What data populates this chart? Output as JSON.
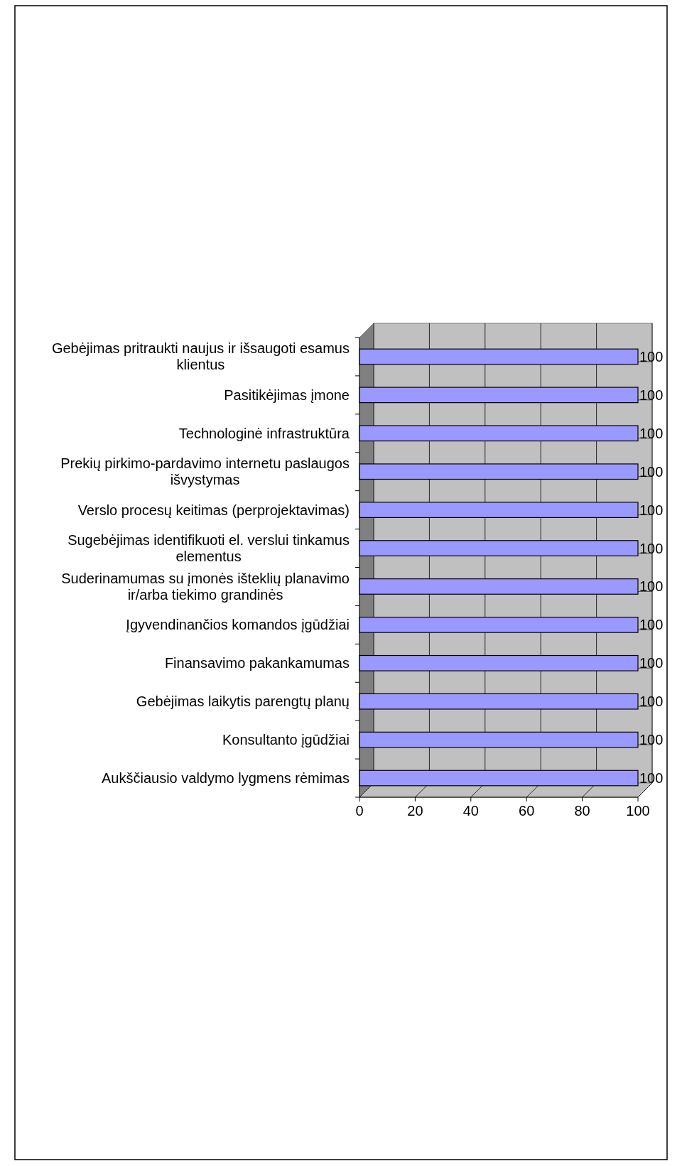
{
  "chart_data": {
    "type": "bar",
    "orientation": "horizontal",
    "categories": [
      "Gebėjimas pritraukti naujus ir išsaugoti esamus klientus",
      "Pasitikėjimas įmone",
      "Technologinė infrastruktūra",
      "Prekių pirkimo-pardavimo internetu paslaugos išvystymas",
      "Verslo procesų keitimas (perprojektavimas)",
      "Sugebėjimas identifikuoti el. verslui tinkamus elementus",
      "Suderinamumas su įmonės išteklių planavimo ir/arba tiekimo grandinės",
      "Įgyvendinančios komandos įgūdžiai",
      "Finansavimo pakankamumas",
      "Gebėjimas laikytis parengtų planų",
      "Konsultanto įgūdžiai",
      "Aukščiausio valdymo lygmens rėmimas"
    ],
    "values": [
      100,
      100,
      100,
      100,
      100,
      100,
      100,
      100,
      100,
      100,
      100,
      100
    ],
    "color": "#9999ff",
    "xlim": [
      0,
      100
    ],
    "xticks": [
      0,
      20,
      40,
      60,
      80,
      100
    ],
    "grid": "x",
    "data_labels": true
  }
}
